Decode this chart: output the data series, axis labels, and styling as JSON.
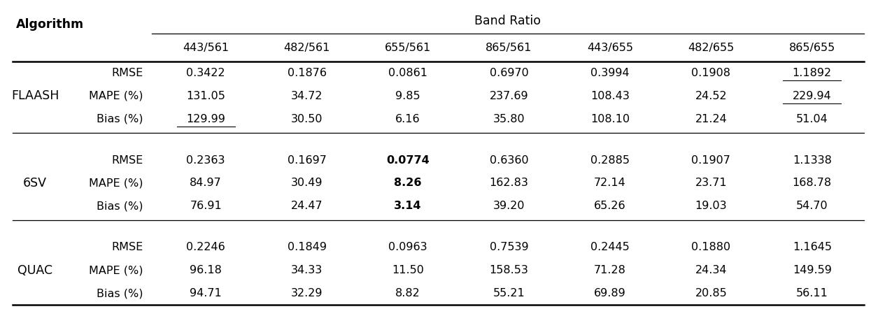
{
  "title": "Band Ratio",
  "col_header_label": "Algorithm",
  "band_ratios": [
    "443/561",
    "482/561",
    "655/561",
    "865/561",
    "443/655",
    "482/655",
    "865/655"
  ],
  "algorithms": [
    "FLAASH",
    "6SV",
    "QUAC"
  ],
  "metrics": [
    "RMSE",
    "MAPE (%)",
    "Bias (%)"
  ],
  "data": {
    "FLAASH": {
      "RMSE": [
        "0.3422",
        "0.1876",
        "0.0861",
        "0.6970",
        "0.3994",
        "0.1908",
        "1.1892"
      ],
      "MAPE (%)": [
        "131.05",
        "34.72",
        "9.85",
        "237.69",
        "108.43",
        "24.52",
        "229.94"
      ],
      "Bias (%)": [
        "129.99",
        "30.50",
        "6.16",
        "35.80",
        "108.10",
        "21.24",
        "51.04"
      ]
    },
    "6SV": {
      "RMSE": [
        "0.2363",
        "0.1697",
        "0.0774",
        "0.6360",
        "0.2885",
        "0.1907",
        "1.1338"
      ],
      "MAPE (%)": [
        "84.97",
        "30.49",
        "8.26",
        "162.83",
        "72.14",
        "23.71",
        "168.78"
      ],
      "Bias (%)": [
        "76.91",
        "24.47",
        "3.14",
        "39.20",
        "65.26",
        "19.03",
        "54.70"
      ]
    },
    "QUAC": {
      "RMSE": [
        "0.2246",
        "0.1849",
        "0.0963",
        "0.7539",
        "0.2445",
        "0.1880",
        "1.1645"
      ],
      "MAPE (%)": [
        "96.18",
        "34.33",
        "11.50",
        "158.53",
        "71.28",
        "24.34",
        "149.59"
      ],
      "Bias (%)": [
        "94.71",
        "32.29",
        "8.82",
        "55.21",
        "69.89",
        "20.85",
        "56.11"
      ]
    }
  },
  "underline_cells": {
    "FLAASH": {
      "RMSE": [
        false,
        false,
        false,
        false,
        false,
        false,
        true
      ],
      "MAPE (%)": [
        false,
        false,
        false,
        false,
        false,
        false,
        true
      ],
      "Bias (%)": [
        true,
        false,
        false,
        false,
        false,
        false,
        false
      ]
    },
    "6SV": {
      "RMSE": [
        false,
        false,
        false,
        false,
        false,
        false,
        false
      ],
      "MAPE (%)": [
        false,
        false,
        false,
        false,
        false,
        false,
        false
      ],
      "Bias (%)": [
        false,
        false,
        false,
        false,
        false,
        false,
        false
      ]
    },
    "QUAC": {
      "RMSE": [
        false,
        false,
        false,
        false,
        false,
        false,
        false
      ],
      "MAPE (%)": [
        false,
        false,
        false,
        false,
        false,
        false,
        false
      ],
      "Bias (%)": [
        false,
        false,
        false,
        false,
        false,
        false,
        false
      ]
    }
  },
  "bold_cells": {
    "FLAASH": {
      "RMSE": [
        false,
        false,
        false,
        false,
        false,
        false,
        false
      ],
      "MAPE (%)": [
        false,
        false,
        false,
        false,
        false,
        false,
        false
      ],
      "Bias (%)": [
        false,
        false,
        false,
        false,
        false,
        false,
        false
      ]
    },
    "6SV": {
      "RMSE": [
        false,
        false,
        true,
        false,
        false,
        false,
        false
      ],
      "MAPE (%)": [
        false,
        false,
        true,
        false,
        false,
        false,
        false
      ],
      "Bias (%)": [
        false,
        false,
        true,
        false,
        false,
        false,
        false
      ]
    },
    "QUAC": {
      "RMSE": [
        false,
        false,
        false,
        false,
        false,
        false,
        false
      ],
      "MAPE (%)": [
        false,
        false,
        false,
        false,
        false,
        false,
        false
      ],
      "Bias (%)": [
        false,
        false,
        false,
        false,
        false,
        false,
        false
      ]
    }
  },
  "background_color": "#ffffff",
  "text_color": "#000000",
  "font_size": 11.5,
  "header_font_size": 12.5,
  "algo_font_size": 12.5
}
